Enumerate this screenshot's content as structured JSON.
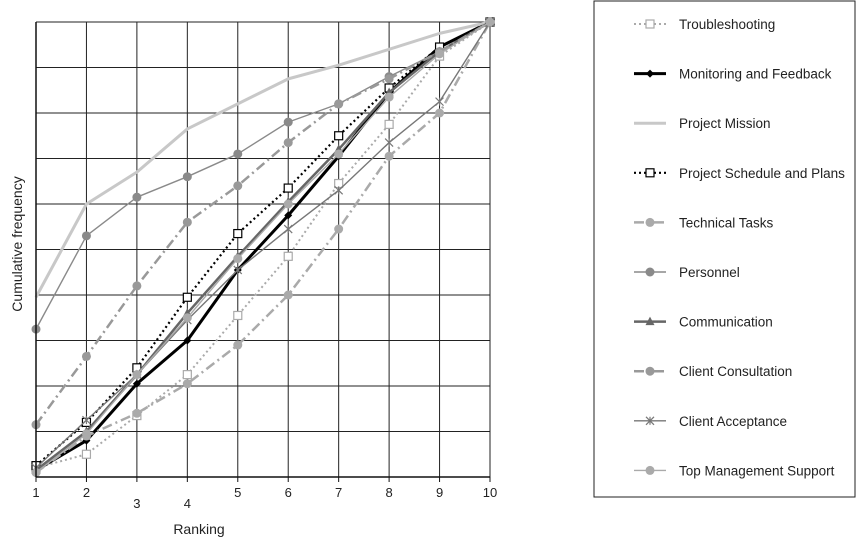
{
  "chart_data": {
    "type": "line",
    "xlabel": "Ranking",
    "ylabel": "Cumulative frequency",
    "x": [
      1,
      2,
      3,
      4,
      5,
      6,
      7,
      8,
      9,
      10
    ],
    "x_tick_labels": [
      "1",
      "2",
      "3",
      "4",
      "5",
      "6",
      "7",
      "8",
      "9",
      "10"
    ],
    "ylim": [
      0,
      1
    ],
    "y_ticks_labeled": false,
    "grid": true,
    "legend_position": "right",
    "series": [
      {
        "name": "Troubleshooting",
        "color": "#aaaaaa",
        "dash": "dotted",
        "marker": "square-open",
        "values": [
          0.02,
          0.05,
          0.135,
          0.225,
          0.355,
          0.485,
          0.645,
          0.775,
          0.925,
          1.0
        ]
      },
      {
        "name": "Monitoring and Feedback",
        "color": "#000000",
        "dash": "solid",
        "marker": "diamond",
        "values": [
          0.015,
          0.08,
          0.205,
          0.3,
          0.455,
          0.575,
          0.705,
          0.845,
          0.945,
          1.0
        ]
      },
      {
        "name": "Project Mission",
        "color": "#c8c8c8",
        "dash": "solid",
        "marker": "none",
        "values": [
          0.395,
          0.6,
          0.67,
          0.765,
          0.82,
          0.875,
          0.905,
          0.94,
          0.975,
          1.0
        ]
      },
      {
        "name": "Project Schedule and Plans",
        "color": "#000000",
        "dash": "dotted",
        "marker": "square-open",
        "values": [
          0.025,
          0.12,
          0.24,
          0.395,
          0.535,
          0.635,
          0.75,
          0.855,
          0.945,
          1.0
        ]
      },
      {
        "name": "Technical Tasks",
        "color": "#aaaaaa",
        "dash": "dashdot",
        "marker": "circle",
        "values": [
          0.01,
          0.09,
          0.14,
          0.205,
          0.29,
          0.4,
          0.545,
          0.705,
          0.8,
          1.0
        ]
      },
      {
        "name": "Personnel",
        "color": "#8a8a8a",
        "dash": "solid",
        "marker": "circle",
        "values": [
          0.325,
          0.53,
          0.615,
          0.66,
          0.71,
          0.78,
          0.82,
          0.88,
          0.935,
          1.0
        ]
      },
      {
        "name": "Communication",
        "color": "#666666",
        "dash": "solid",
        "marker": "triangle",
        "values": [
          0.015,
          0.1,
          0.225,
          0.36,
          0.485,
          0.605,
          0.72,
          0.845,
          0.935,
          1.0
        ]
      },
      {
        "name": "Client Consultation",
        "color": "#999999",
        "dash": "dashdot",
        "marker": "circle",
        "values": [
          0.115,
          0.265,
          0.42,
          0.56,
          0.64,
          0.735,
          0.82,
          0.875,
          0.935,
          1.0
        ]
      },
      {
        "name": "Client Acceptance",
        "color": "#777777",
        "dash": "solid",
        "marker": "asterisk",
        "values": [
          0.02,
          0.125,
          0.225,
          0.345,
          0.455,
          0.545,
          0.63,
          0.735,
          0.825,
          1.0
        ]
      },
      {
        "name": "Top Management Support",
        "color": "#aaaaaa",
        "dash": "solid",
        "marker": "circle",
        "values": [
          0.01,
          0.095,
          0.225,
          0.35,
          0.48,
          0.6,
          0.71,
          0.835,
          0.93,
          1.0
        ]
      }
    ]
  }
}
